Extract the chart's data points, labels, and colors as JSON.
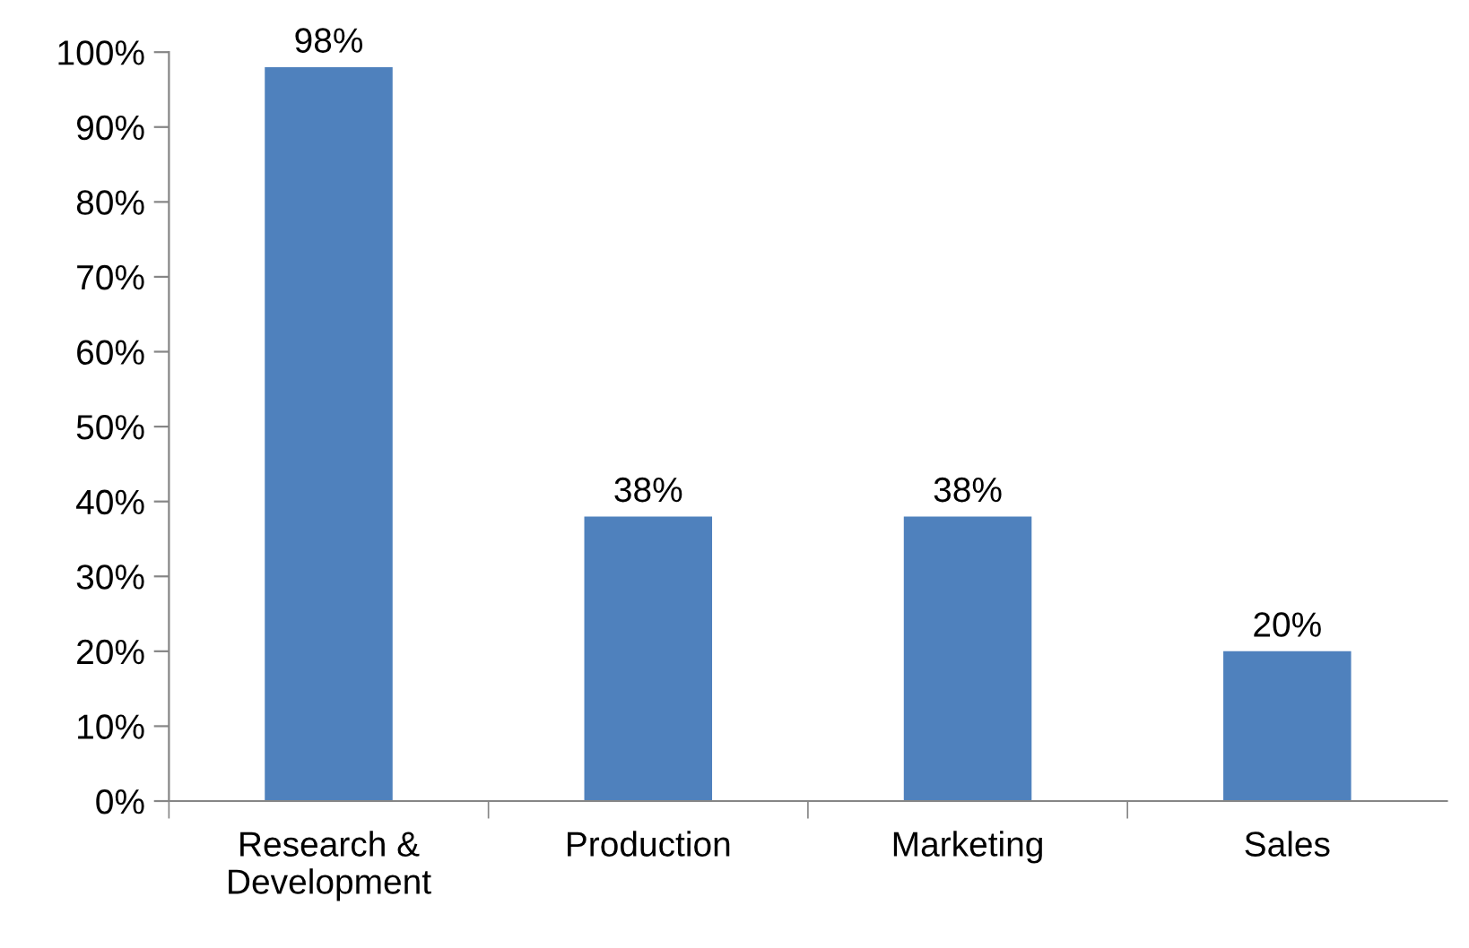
{
  "chart_data": {
    "type": "bar",
    "categories": [
      "Research &\nDevelopment",
      "Production",
      "Marketing",
      "Sales"
    ],
    "values": [
      98,
      38,
      38,
      20
    ],
    "value_labels": [
      "98%",
      "38%",
      "38%",
      "20%"
    ],
    "color": "#4f81bd",
    "ylim": [
      0,
      100
    ],
    "yticks": [
      {
        "value": 0,
        "label": "0%"
      },
      {
        "value": 10,
        "label": "10%"
      },
      {
        "value": 20,
        "label": "20%"
      },
      {
        "value": 30,
        "label": "30%"
      },
      {
        "value": 40,
        "label": "40%"
      },
      {
        "value": 50,
        "label": "50%"
      },
      {
        "value": 60,
        "label": "60%"
      },
      {
        "value": 70,
        "label": "70%"
      },
      {
        "value": 80,
        "label": "80%"
      },
      {
        "value": 90,
        "label": "90%"
      },
      {
        "value": 100,
        "label": "100%"
      }
    ],
    "grid": false,
    "legend": false
  }
}
